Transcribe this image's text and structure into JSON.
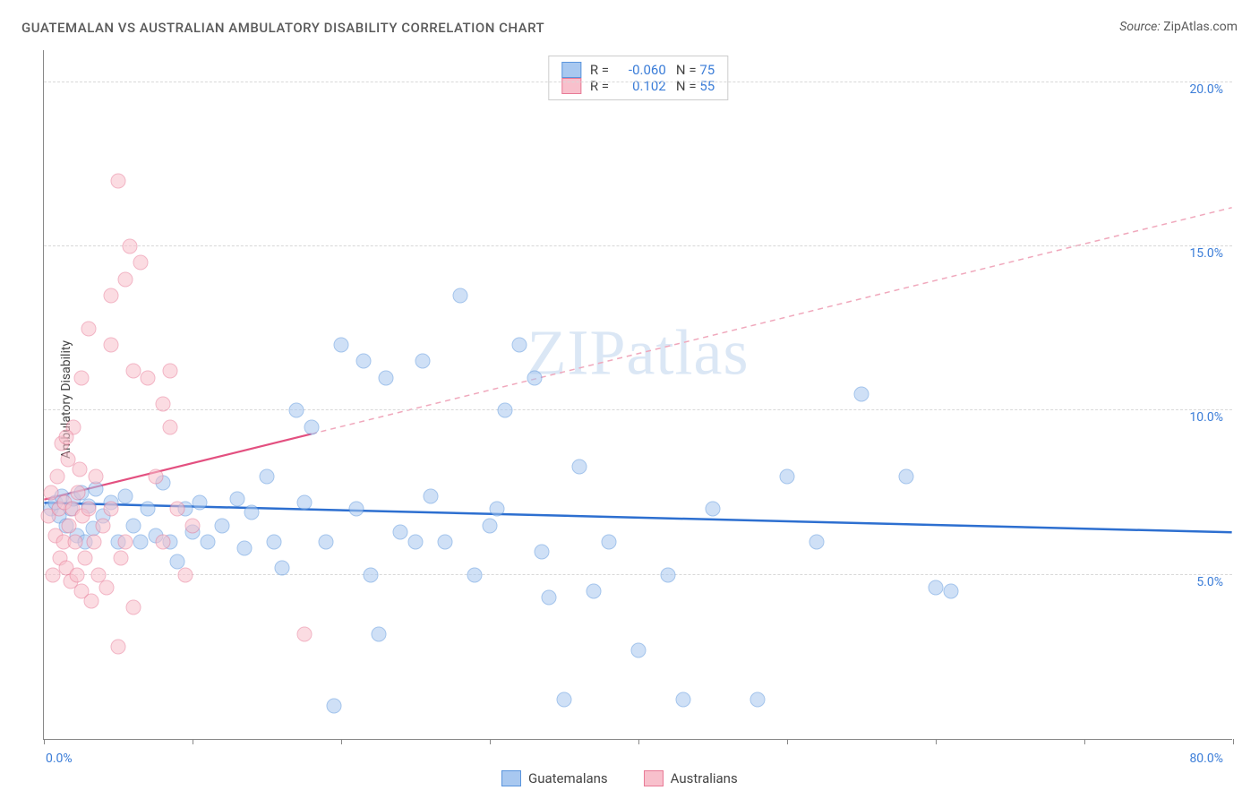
{
  "title": "GUATEMALAN VS AUSTRALIAN AMBULATORY DISABILITY CORRELATION CHART",
  "source_label": "Source:",
  "source_value": "ZipAtlas.com",
  "ylabel": "Ambulatory Disability",
  "watermark": "ZIPatlas",
  "chart": {
    "type": "scatter",
    "background_color": "#ffffff",
    "grid_color": "#d8d8d8",
    "axis_color": "#888888",
    "label_color": "#3b7dd8",
    "text_color": "#5a5a5a",
    "xlim": [
      0,
      80
    ],
    "ylim": [
      0,
      21
    ],
    "xticks": [
      0,
      10,
      20,
      30,
      40,
      50,
      60,
      70,
      80
    ],
    "xtick_labels": {
      "0": "0.0%",
      "80": "80.0%"
    },
    "yticks": [
      5,
      10,
      15,
      20
    ],
    "ytick_labels": {
      "5": "5.0%",
      "10": "10.0%",
      "15": "15.0%",
      "20": "20.0%"
    },
    "marker_radius": 8.5,
    "marker_opacity": 0.55,
    "title_fontsize": 15,
    "label_fontsize": 14,
    "series": [
      {
        "name": "Guatemalans",
        "color_fill": "#a8c8f0",
        "color_stroke": "#5a95dd",
        "r_label": "R =",
        "r_value": "-0.060",
        "n_label": "N =",
        "n_value": "75",
        "trend": {
          "x1": 0,
          "y1": 7.2,
          "x2": 80,
          "y2": 6.3,
          "color": "#2d6fd0",
          "width": 2.5,
          "dash": "none"
        },
        "points": [
          [
            0.5,
            7.0
          ],
          [
            0.8,
            7.2
          ],
          [
            1.0,
            6.8
          ],
          [
            1.2,
            7.4
          ],
          [
            1.5,
            6.5
          ],
          [
            1.8,
            7.0
          ],
          [
            2.0,
            7.3
          ],
          [
            2.2,
            6.2
          ],
          [
            2.5,
            7.5
          ],
          [
            2.8,
            6.0
          ],
          [
            3.0,
            7.1
          ],
          [
            3.3,
            6.4
          ],
          [
            3.5,
            7.6
          ],
          [
            4.0,
            6.8
          ],
          [
            4.5,
            7.2
          ],
          [
            5.0,
            6.0
          ],
          [
            5.5,
            7.4
          ],
          [
            6.0,
            6.5
          ],
          [
            6.5,
            6.0
          ],
          [
            7.0,
            7.0
          ],
          [
            7.5,
            6.2
          ],
          [
            8.0,
            7.8
          ],
          [
            8.5,
            6.0
          ],
          [
            9.0,
            5.4
          ],
          [
            9.5,
            7.0
          ],
          [
            10.0,
            6.3
          ],
          [
            10.5,
            7.2
          ],
          [
            11.0,
            6.0
          ],
          [
            12.0,
            6.5
          ],
          [
            13.0,
            7.3
          ],
          [
            13.5,
            5.8
          ],
          [
            14.0,
            6.9
          ],
          [
            15.0,
            8.0
          ],
          [
            15.5,
            6.0
          ],
          [
            16.0,
            5.2
          ],
          [
            17.0,
            10.0
          ],
          [
            17.5,
            7.2
          ],
          [
            18.0,
            9.5
          ],
          [
            19.0,
            6.0
          ],
          [
            19.5,
            1.0
          ],
          [
            20.0,
            12.0
          ],
          [
            21.0,
            7.0
          ],
          [
            22.0,
            5.0
          ],
          [
            22.5,
            3.2
          ],
          [
            23.0,
            11.0
          ],
          [
            24.0,
            6.3
          ],
          [
            25.0,
            6.0
          ],
          [
            25.5,
            11.5
          ],
          [
            27.0,
            6.0
          ],
          [
            28.0,
            13.5
          ],
          [
            29.0,
            5.0
          ],
          [
            30.0,
            6.5
          ],
          [
            31.0,
            10.0
          ],
          [
            32.0,
            12.0
          ],
          [
            33.0,
            11.0
          ],
          [
            33.5,
            5.7
          ],
          [
            34.0,
            4.3
          ],
          [
            35.0,
            1.2
          ],
          [
            36.0,
            8.3
          ],
          [
            37.0,
            4.5
          ],
          [
            38.0,
            6.0
          ],
          [
            40.0,
            2.7
          ],
          [
            42.0,
            5.0
          ],
          [
            43.0,
            1.2
          ],
          [
            45.0,
            7.0
          ],
          [
            48.0,
            1.2
          ],
          [
            50.0,
            8.0
          ],
          [
            52.0,
            6.0
          ],
          [
            55.0,
            10.5
          ],
          [
            58.0,
            8.0
          ],
          [
            60.0,
            4.6
          ],
          [
            61.0,
            4.5
          ],
          [
            30.5,
            7.0
          ],
          [
            26.0,
            7.4
          ],
          [
            21.5,
            11.5
          ]
        ]
      },
      {
        "name": "Australians",
        "color_fill": "#f8c0cc",
        "color_stroke": "#e87a96",
        "r_label": "R =",
        "r_value": "0.102",
        "n_label": "N =",
        "n_value": "55",
        "trend_solid": {
          "x1": 0,
          "y1": 7.3,
          "x2": 18,
          "y2": 9.3,
          "color": "#e35080",
          "width": 2.2,
          "dash": "none"
        },
        "trend_dash": {
          "x1": 18,
          "y1": 9.3,
          "x2": 80,
          "y2": 16.2,
          "color": "#f0a8bc",
          "width": 1.5,
          "dash": "6 5"
        },
        "points": [
          [
            0.3,
            6.8
          ],
          [
            0.5,
            7.5
          ],
          [
            0.6,
            5.0
          ],
          [
            0.8,
            6.2
          ],
          [
            0.9,
            8.0
          ],
          [
            1.0,
            7.0
          ],
          [
            1.1,
            5.5
          ],
          [
            1.2,
            9.0
          ],
          [
            1.3,
            6.0
          ],
          [
            1.4,
            7.2
          ],
          [
            1.5,
            5.2
          ],
          [
            1.6,
            8.5
          ],
          [
            1.7,
            6.5
          ],
          [
            1.8,
            4.8
          ],
          [
            1.9,
            7.0
          ],
          [
            2.0,
            9.5
          ],
          [
            2.1,
            6.0
          ],
          [
            2.2,
            5.0
          ],
          [
            2.3,
            7.5
          ],
          [
            2.4,
            8.2
          ],
          [
            2.5,
            4.5
          ],
          [
            2.6,
            6.8
          ],
          [
            2.8,
            5.5
          ],
          [
            3.0,
            7.0
          ],
          [
            3.2,
            4.2
          ],
          [
            3.4,
            6.0
          ],
          [
            3.5,
            8.0
          ],
          [
            3.7,
            5.0
          ],
          [
            4.0,
            6.5
          ],
          [
            4.2,
            4.6
          ],
          [
            4.5,
            7.0
          ],
          [
            5.0,
            2.8
          ],
          [
            5.0,
            17.0
          ],
          [
            5.2,
            5.5
          ],
          [
            5.5,
            6.0
          ],
          [
            5.5,
            14.0
          ],
          [
            5.8,
            15.0
          ],
          [
            6.0,
            11.2
          ],
          [
            6.0,
            4.0
          ],
          [
            6.5,
            14.5
          ],
          [
            7.0,
            11.0
          ],
          [
            7.5,
            8.0
          ],
          [
            8.0,
            6.0
          ],
          [
            8.0,
            10.2
          ],
          [
            8.5,
            11.2
          ],
          [
            8.5,
            9.5
          ],
          [
            9.0,
            7.0
          ],
          [
            9.5,
            5.0
          ],
          [
            10.0,
            6.5
          ],
          [
            4.5,
            13.5
          ],
          [
            4.5,
            12.0
          ],
          [
            3.0,
            12.5
          ],
          [
            2.5,
            11.0
          ],
          [
            1.5,
            9.2
          ],
          [
            17.5,
            3.2
          ]
        ]
      }
    ]
  },
  "legend_bottom": [
    {
      "label": "Guatemalans",
      "fill": "#a8c8f0",
      "stroke": "#5a95dd"
    },
    {
      "label": "Australians",
      "fill": "#f8c0cc",
      "stroke": "#e87a96"
    }
  ]
}
